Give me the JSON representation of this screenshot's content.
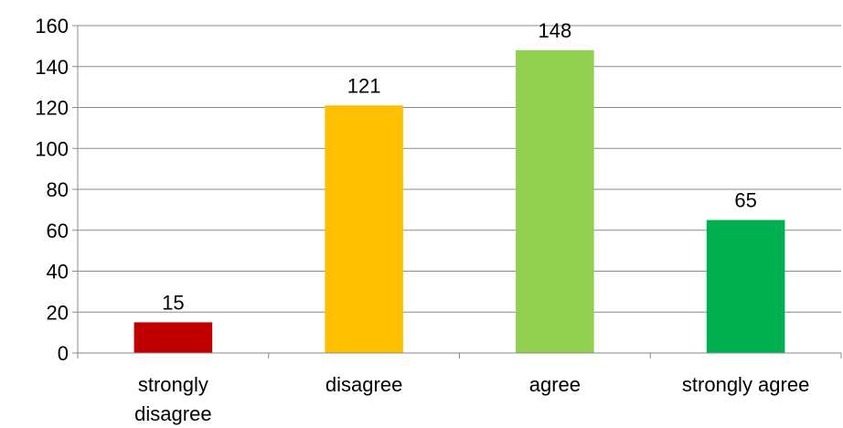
{
  "chart_data": {
    "type": "bar",
    "categories": [
      "strongly disagree",
      "disagree",
      "agree",
      "strongly agree"
    ],
    "category_label_lines": [
      [
        "strongly",
        "disagree"
      ],
      [
        "disagree"
      ],
      [
        "agree"
      ],
      [
        "strongly agree"
      ]
    ],
    "values": [
      15,
      121,
      148,
      65
    ],
    "data_labels": [
      "15",
      "121",
      "148",
      "65"
    ],
    "bar_colors": [
      "#c00000",
      "#ffc000",
      "#92d050",
      "#00b050"
    ],
    "title": "",
    "xlabel": "",
    "ylabel": "",
    "ylim": [
      0,
      160
    ],
    "yticks": [
      0,
      20,
      40,
      60,
      80,
      100,
      120,
      140,
      160
    ],
    "ytick_labels": [
      "0",
      "20",
      "40",
      "60",
      "80",
      "100",
      "120",
      "140",
      "160"
    ],
    "grid": true,
    "legend": "none"
  }
}
